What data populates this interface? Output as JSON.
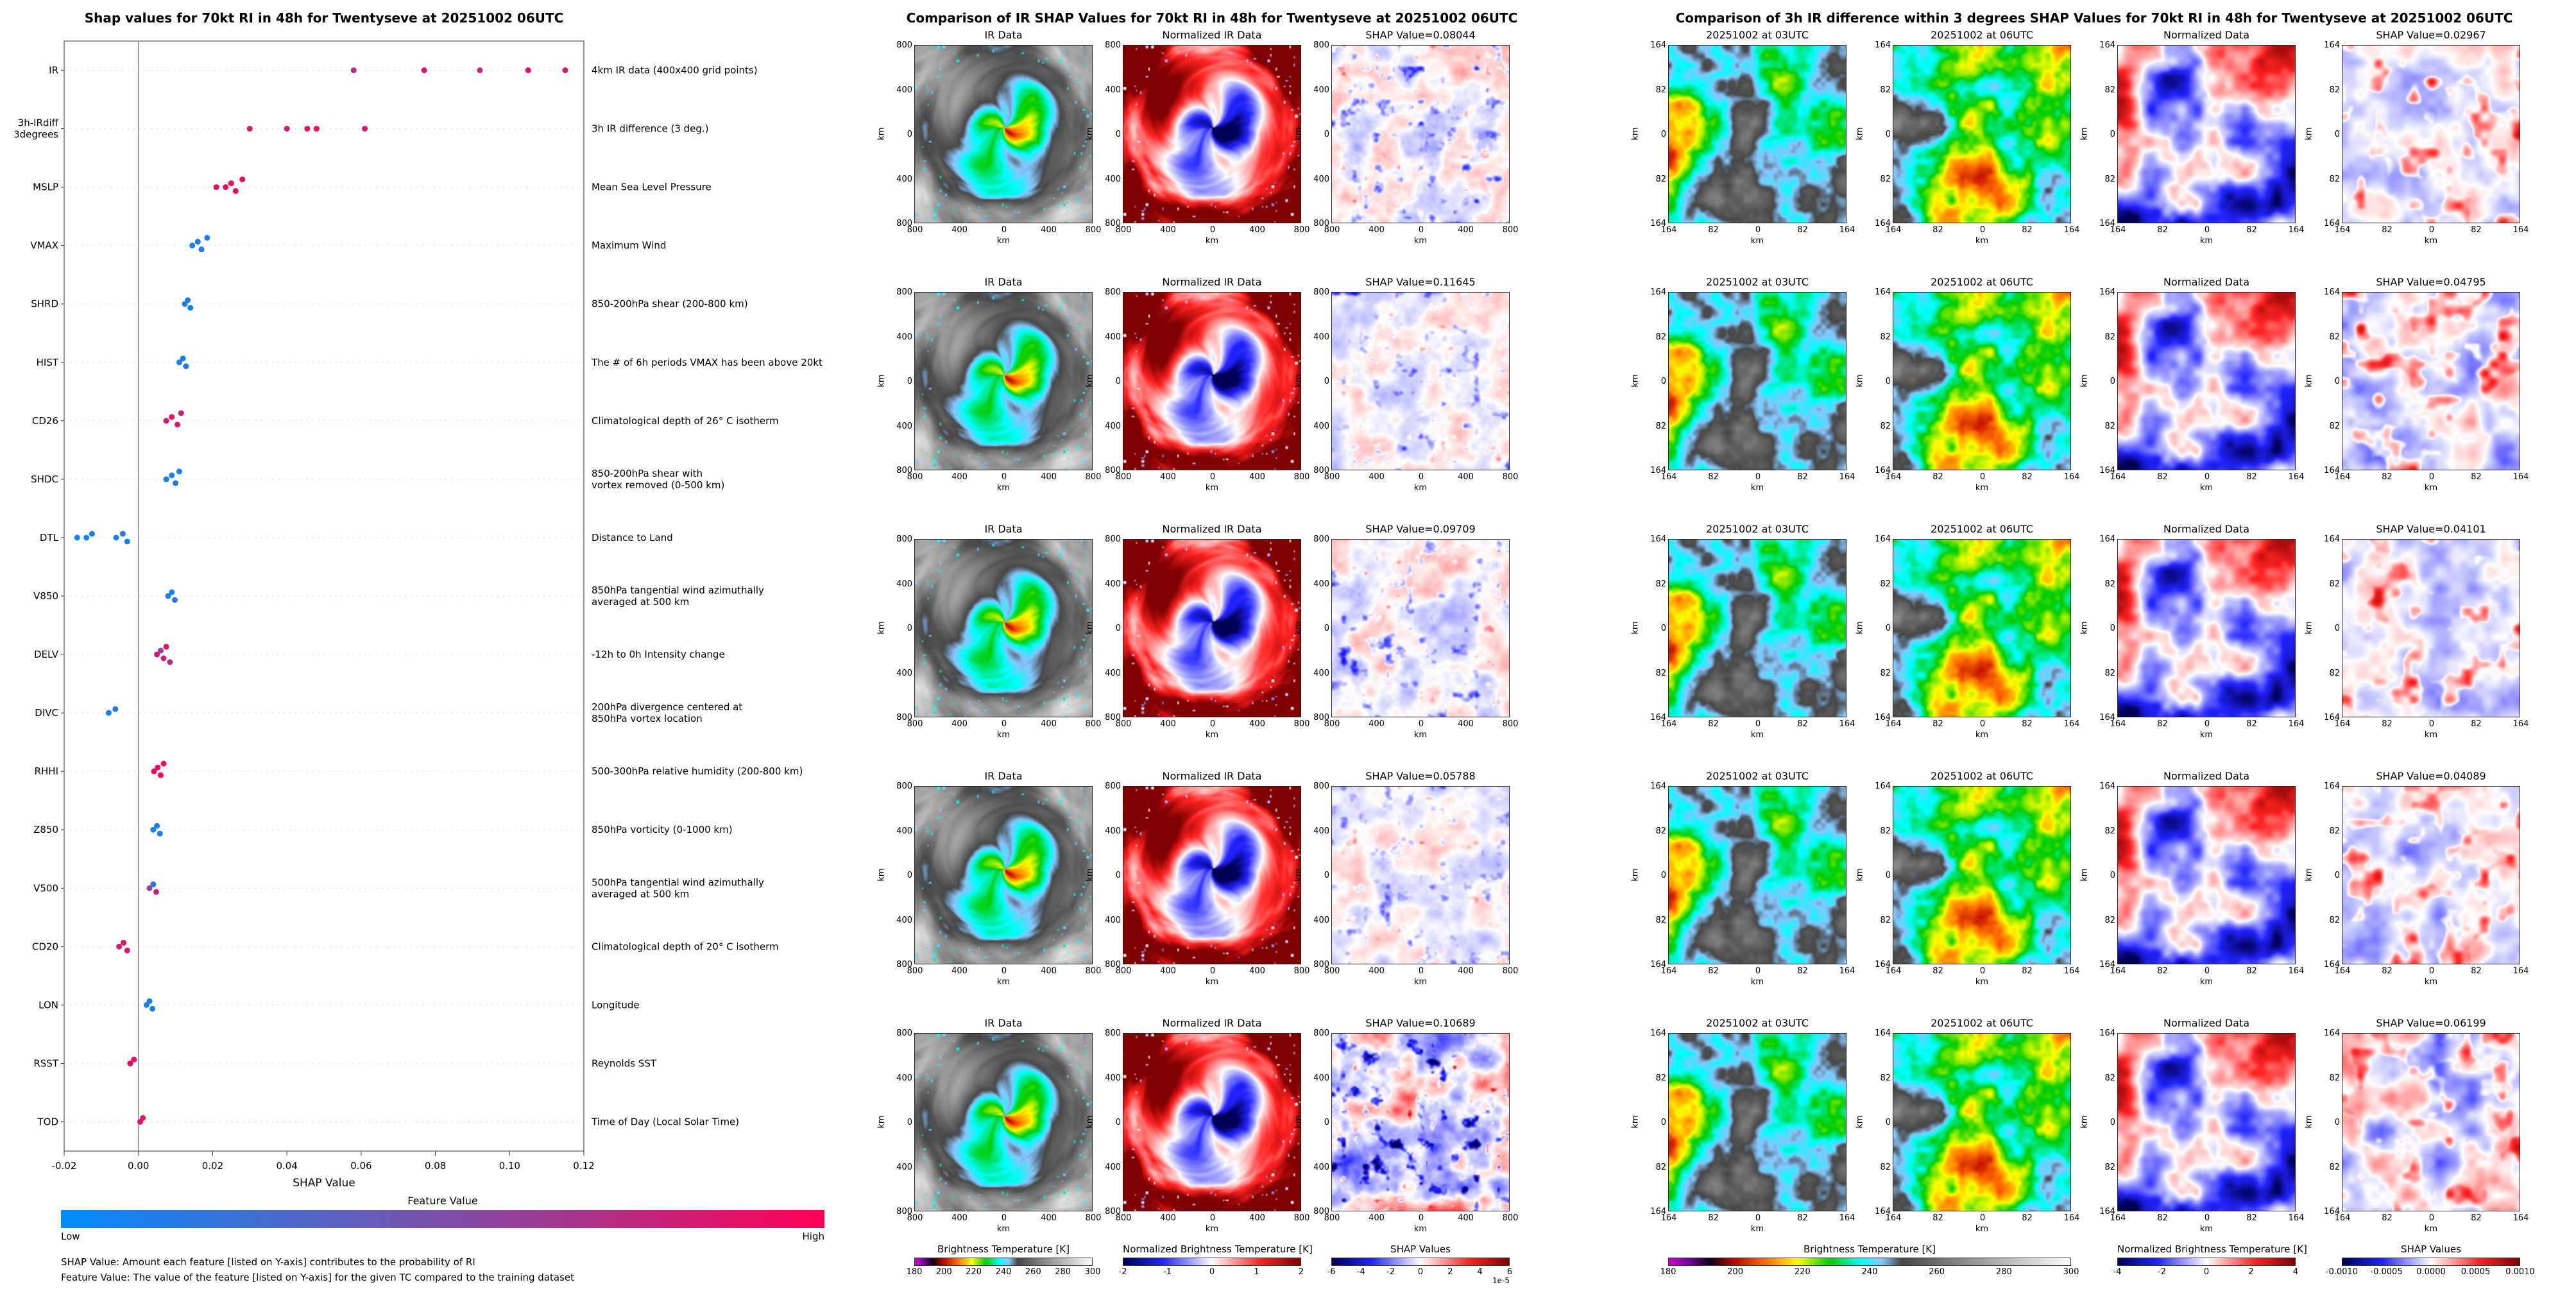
{
  "chart_data": [
    {
      "type": "scatter",
      "subtype": "shap-beeswarm",
      "title": "Shap values for 70kt RI in 48h for Twentyseve at 20251002 06UTC",
      "xlabel": "SHAP Value",
      "x_range": [
        -0.02,
        0.12
      ],
      "x_ticks": [
        -0.02,
        0,
        0.02,
        0.04,
        0.06,
        0.08,
        0.1,
        0.12
      ],
      "x_tick_labels": [
        "-0.02",
        "0.00",
        "0.02",
        "0.04",
        "0.06",
        "0.08",
        "0.10",
        "0.12"
      ],
      "colorbar": {
        "title": "Feature Value",
        "low_label": "Low",
        "high_label": "High",
        "low_color": "#008bfb",
        "high_color": "#ff0055"
      },
      "footnotes": [
        "SHAP Value: Amount each feature [listed on Y-axis] contributes to the probability of RI",
        "Feature Value: The value of the feature [listed on Y-axis] for the given TC compared to the training dataset"
      ],
      "features": [
        {
          "name": "IR",
          "desc": "4km IR data (400x400 grid points)",
          "points": [
            {
              "x": 0.058,
              "c": 0.72
            },
            {
              "x": 0.077,
              "c": 0.88
            },
            {
              "x": 0.092,
              "c": 0.8
            },
            {
              "x": 0.105,
              "c": 0.92
            },
            {
              "x": 0.115,
              "c": 0.85
            }
          ]
        },
        {
          "name": "3h-IRdiff\n3degrees",
          "desc": "3h IR difference (3 deg.)",
          "points": [
            {
              "x": 0.03,
              "c": 0.85
            },
            {
              "x": 0.04,
              "c": 0.8
            },
            {
              "x": 0.0455,
              "c": 0.88
            },
            {
              "x": 0.048,
              "c": 0.92
            },
            {
              "x": 0.061,
              "c": 0.85
            }
          ]
        },
        {
          "name": "MSLP",
          "desc": "Mean Sea Level Pressure",
          "points": [
            {
              "x": 0.021,
              "c": 0.97
            },
            {
              "x": 0.0235,
              "c": 0.95
            },
            {
              "x": 0.025,
              "c": 0.97
            },
            {
              "x": 0.0262,
              "c": 0.9
            },
            {
              "x": 0.028,
              "c": 0.95
            }
          ]
        },
        {
          "name": "VMAX",
          "desc": "Maximum Wind",
          "points": [
            {
              "x": 0.0145,
              "c": 0.07
            },
            {
              "x": 0.016,
              "c": 0.1
            },
            {
              "x": 0.017,
              "c": 0.12
            },
            {
              "x": 0.0185,
              "c": 0.1
            }
          ]
        },
        {
          "name": "SHRD",
          "desc": "850-200hPa shear (200-800 km)",
          "points": [
            {
              "x": 0.0125,
              "c": 0.1
            },
            {
              "x": 0.0133,
              "c": 0.14
            },
            {
              "x": 0.014,
              "c": 0.1
            }
          ]
        },
        {
          "name": "HIST",
          "desc": "The # of 6h periods VMAX has been above 20kt",
          "points": [
            {
              "x": 0.011,
              "c": 0.12
            },
            {
              "x": 0.012,
              "c": 0.08
            },
            {
              "x": 0.0128,
              "c": 0.15
            }
          ]
        },
        {
          "name": "CD26",
          "desc": "Climatological depth of 26° C isotherm",
          "points": [
            {
              "x": 0.0075,
              "c": 0.85
            },
            {
              "x": 0.009,
              "c": 0.9
            },
            {
              "x": 0.0105,
              "c": 0.85
            },
            {
              "x": 0.0115,
              "c": 0.8
            }
          ]
        },
        {
          "name": "SHDC",
          "desc": "850-200hPa shear with\nvortex removed (0-500 km)",
          "points": [
            {
              "x": 0.0075,
              "c": 0.12
            },
            {
              "x": 0.009,
              "c": 0.08
            },
            {
              "x": 0.01,
              "c": 0.15
            },
            {
              "x": 0.011,
              "c": 0.1
            }
          ]
        },
        {
          "name": "DTL",
          "desc": "Distance to Land",
          "points": [
            {
              "x": -0.0165,
              "c": 0.08
            },
            {
              "x": -0.014,
              "c": 0.06
            },
            {
              "x": -0.0125,
              "c": 0.12
            },
            {
              "x": -0.006,
              "c": 0.1
            },
            {
              "x": -0.0042,
              "c": 0.14
            },
            {
              "x": -0.003,
              "c": 0.1
            }
          ]
        },
        {
          "name": "V850",
          "desc": "850hPa tangential wind azimuthally\naveraged at 500 km",
          "points": [
            {
              "x": 0.008,
              "c": 0.12
            },
            {
              "x": 0.009,
              "c": 0.08
            },
            {
              "x": 0.0098,
              "c": 0.15
            }
          ]
        },
        {
          "name": "DELV",
          "desc": "-12h to 0h Intensity change",
          "points": [
            {
              "x": 0.005,
              "c": 0.85
            },
            {
              "x": 0.006,
              "c": 0.6
            },
            {
              "x": 0.0068,
              "c": 0.8
            },
            {
              "x": 0.0075,
              "c": 0.92
            },
            {
              "x": 0.0085,
              "c": 0.7
            }
          ]
        },
        {
          "name": "DIVC",
          "desc": "200hPa divergence centered at\n850hPa vortex location",
          "points": [
            {
              "x": -0.008,
              "c": 0.1
            },
            {
              "x": -0.0062,
              "c": 0.13
            }
          ]
        },
        {
          "name": "RHHI",
          "desc": "500-300hPa relative humidity (200-800 km)",
          "points": [
            {
              "x": 0.0042,
              "c": 0.95
            },
            {
              "x": 0.0052,
              "c": 0.9
            },
            {
              "x": 0.006,
              "c": 0.96
            },
            {
              "x": 0.0068,
              "c": 0.92
            }
          ]
        },
        {
          "name": "Z850",
          "desc": "850hPa vorticity (0-1000 km)",
          "points": [
            {
              "x": 0.004,
              "c": 0.1
            },
            {
              "x": 0.005,
              "c": 0.13
            },
            {
              "x": 0.0058,
              "c": 0.09
            }
          ]
        },
        {
          "name": "V500",
          "desc": "500hPa tangential wind azimuthally\naveraged at 500 km",
          "points": [
            {
              "x": 0.003,
              "c": 0.6
            },
            {
              "x": 0.004,
              "c": 0.15
            },
            {
              "x": 0.0048,
              "c": 0.8
            }
          ]
        },
        {
          "name": "CD20",
          "desc": "Climatological depth of 20° C isotherm",
          "points": [
            {
              "x": -0.0052,
              "c": 0.85
            },
            {
              "x": -0.004,
              "c": 0.9
            },
            {
              "x": -0.003,
              "c": 0.85
            }
          ]
        },
        {
          "name": "LON",
          "desc": "Longitude",
          "points": [
            {
              "x": 0.0022,
              "c": 0.1
            },
            {
              "x": 0.003,
              "c": 0.13
            },
            {
              "x": 0.0038,
              "c": 0.09
            }
          ]
        },
        {
          "name": "RSST",
          "desc": "Reynolds SST",
          "points": [
            {
              "x": -0.0022,
              "c": 0.95
            },
            {
              "x": -0.0012,
              "c": 0.9
            }
          ]
        },
        {
          "name": "TOD",
          "desc": "Time of Day (Local Solar Time)",
          "points": [
            {
              "x": 0.0005,
              "c": 0.9
            },
            {
              "x": 0.0012,
              "c": 0.85
            }
          ]
        }
      ]
    },
    {
      "type": "heatmap",
      "title": "Comparison of IR SHAP Values for 70kt RI in 48h for Twentyseve at 20251002 06UTC",
      "columns": [
        "IR Data",
        "Normalized IR Data",
        "SHAP Value"
      ],
      "axis_label": "km",
      "tick_labels": [
        "800",
        "400",
        "0",
        "400",
        "800"
      ],
      "row_shap_values": [
        0.08044,
        0.11645,
        0.09709,
        0.05788,
        0.10689
      ],
      "colorbars": [
        {
          "label": "Brightness Temperature [K]",
          "tick_labels": [
            "180",
            "200",
            "220",
            "240",
            "260",
            "280",
            "300"
          ],
          "cmap": "ir"
        },
        {
          "label": "Normalized Brightness Temperature [K]",
          "tick_labels": [
            "-2",
            "-1",
            "0",
            "1",
            "2"
          ],
          "cmap": "seismic"
        },
        {
          "label": "SHAP Values",
          "tick_labels": [
            "-6",
            "-4",
            "-2",
            "0",
            "2",
            "4",
            "6"
          ],
          "offset_text": "1e-5",
          "cmap": "seismic"
        }
      ]
    },
    {
      "type": "heatmap",
      "title": "Comparison of 3h IR difference within 3 degrees SHAP Values for 70kt RI in 48h for Twentyseve at 20251002 06UTC",
      "columns": [
        "20251002 at 03UTC",
        "20251002 at 06UTC",
        "Normalized Data",
        "SHAP Value"
      ],
      "axis_label": "km",
      "tick_labels": [
        "164",
        "82",
        "0",
        "82",
        "164"
      ],
      "row_shap_values": [
        0.02967,
        0.04795,
        0.04101,
        0.04089,
        0.06199
      ],
      "colorbars": [
        {
          "label": "Brightness Temperature [K]",
          "tick_labels": [
            "180",
            "200",
            "220",
            "240",
            "260",
            "280",
            "300"
          ],
          "cmap": "ir"
        },
        {
          "label": "Normalized Brightness Temperature [K]",
          "tick_labels": [
            "-4",
            "-2",
            "0",
            "2",
            "4"
          ],
          "cmap": "seismic"
        },
        {
          "label": "SHAP Values",
          "tick_labels": [
            "-0.0010",
            "-0.0005",
            "0.0000",
            "0.0005",
            "0.0010"
          ],
          "cmap": "seismic"
        }
      ]
    }
  ]
}
